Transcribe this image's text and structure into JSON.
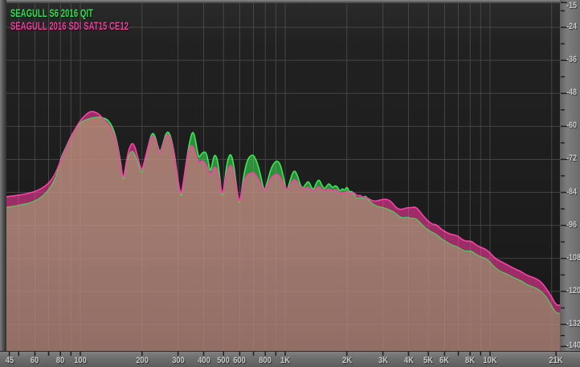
{
  "legend": {
    "items": [
      {
        "label": "SEAGULL S6 2016 QIT",
        "color": "#2ee24e"
      },
      {
        "label": "SEAGULL 2016 SDI SAT15 CE12",
        "color": "#f23d9e"
      }
    ]
  },
  "colors": {
    "plot_bg_top": "#2a2a2a",
    "plot_bg_mid": "#1d1d1d",
    "plot_bg_bottom": "#181818",
    "grid": "#4d4d4d",
    "frame_light": "#8a8a8a",
    "frame_dark": "#3d3d3d",
    "axis_strip_light": "#858585",
    "axis_strip_dark": "#5d5d5d",
    "tick": "#1f1f1f",
    "label_text": "#c9c9c9",
    "series1_line": "#39e353",
    "series1_fill": "#3cd24f",
    "series2_line": "#f441a4",
    "series2_fill": "#d63488",
    "overlap_fill": "#9e7e6e"
  },
  "chart_data": {
    "type": "area",
    "title": "",
    "x_axis": {
      "scale": "log",
      "unit": "Hz",
      "min_hz": 44,
      "max_hz": 21000,
      "labels": [
        {
          "hz": 45,
          "text": "45"
        },
        {
          "hz": 60,
          "text": "60"
        },
        {
          "hz": 80,
          "text": "80"
        },
        {
          "hz": 100,
          "text": "100"
        },
        {
          "hz": 200,
          "text": "200"
        },
        {
          "hz": 300,
          "text": "300"
        },
        {
          "hz": 400,
          "text": "400"
        },
        {
          "hz": 500,
          "text": "500"
        },
        {
          "hz": 600,
          "text": "600"
        },
        {
          "hz": 800,
          "text": "800"
        },
        {
          "hz": 1000,
          "text": "1K"
        },
        {
          "hz": 2000,
          "text": "2K"
        },
        {
          "hz": 3000,
          "text": "3K"
        },
        {
          "hz": 4000,
          "text": "4K"
        },
        {
          "hz": 5000,
          "text": "5K"
        },
        {
          "hz": 6000,
          "text": "6K"
        },
        {
          "hz": 8000,
          "text": "8K"
        },
        {
          "hz": 10000,
          "text": "10K"
        },
        {
          "hz": 21000,
          "text": "21K"
        }
      ],
      "ticks_hz": [
        45,
        50,
        60,
        70,
        80,
        90,
        100,
        200,
        300,
        400,
        500,
        600,
        700,
        800,
        900,
        1000,
        2000,
        3000,
        4000,
        5000,
        6000,
        7000,
        8000,
        9000,
        10000,
        21000
      ],
      "grid_hz": [
        50,
        60,
        70,
        80,
        90,
        100,
        200,
        300,
        400,
        500,
        600,
        700,
        800,
        900,
        1000,
        2000,
        3000,
        4000,
        5000,
        6000,
        7000,
        8000,
        9000,
        10000,
        20000
      ]
    },
    "y_axis": {
      "unit": "dB",
      "max_db": -15,
      "min_db": -141,
      "labels": [
        {
          "db": -15,
          "text": "-15"
        },
        {
          "db": -24,
          "text": "-24"
        },
        {
          "db": -36,
          "text": "-36"
        },
        {
          "db": -48,
          "text": "-48"
        },
        {
          "db": -60,
          "text": "-60"
        },
        {
          "db": -72,
          "text": "-72"
        },
        {
          "db": -84,
          "text": "-84"
        },
        {
          "db": -96,
          "text": "-96"
        },
        {
          "db": -108,
          "text": "-108"
        },
        {
          "db": -120,
          "text": "-120"
        },
        {
          "db": -132,
          "text": "-132"
        },
        {
          "db": -140,
          "text": "-140"
        }
      ],
      "minor_ticks_db": [
        -18,
        -30,
        -42,
        -54,
        -66,
        -78,
        -90,
        -102,
        -114,
        -126,
        -136
      ],
      "grid_db": [
        -24,
        -36,
        -48,
        -60,
        -72,
        -84,
        -96,
        -108,
        -120,
        -132
      ]
    },
    "frequencies_hz": [
      44,
      48,
      52,
      56,
      60,
      64,
      68,
      71,
      74,
      77,
      80,
      84,
      88,
      92,
      96,
      100,
      105,
      110,
      114,
      119,
      124,
      130,
      136,
      142,
      148,
      153,
      158,
      162,
      166,
      171,
      176,
      180,
      185,
      191,
      197,
      201,
      207,
      213,
      219,
      225,
      231,
      238,
      245,
      253,
      261,
      269,
      277,
      287,
      297,
      306,
      311,
      319,
      331,
      343,
      353,
      362,
      371,
      379,
      390,
      400,
      412,
      422,
      430,
      440,
      450,
      462,
      472,
      482,
      492,
      502,
      516,
      530,
      544,
      558,
      572,
      586,
      598,
      612,
      630,
      655,
      680,
      700,
      725,
      755,
      790,
      820,
      855,
      890,
      920,
      950,
      985,
      1015,
      1050,
      1085,
      1115,
      1150,
      1180,
      1215,
      1260,
      1300,
      1340,
      1375,
      1420,
      1465,
      1510,
      1555,
      1600,
      1645,
      1700,
      1750,
      1800,
      1850,
      1900,
      1950,
      2000,
      2060,
      2120,
      2180,
      2250,
      2320,
      2400,
      2460,
      2550,
      2700,
      2850,
      3000,
      3200,
      3350,
      3500,
      3700,
      3900,
      4100,
      4350,
      4600,
      4900,
      5200,
      5500,
      5800,
      6100,
      6500,
      6900,
      7300,
      7700,
      8100,
      8500,
      9000,
      9500,
      10000,
      10600,
      11200,
      11900,
      12600,
      13400,
      14200,
      15000,
      16000,
      17000,
      18000,
      19000,
      20000,
      21000
    ],
    "series": [
      {
        "name": "SEAGULL S6 2016 QIT",
        "db": [
          -89.5,
          -89.0,
          -88.5,
          -88.0,
          -87.2,
          -86.0,
          -84.3,
          -82.5,
          -80.3,
          -77.5,
          -72.0,
          -68.5,
          -65.2,
          -62.3,
          -60.3,
          -58.8,
          -57.8,
          -57.4,
          -57.0,
          -56.8,
          -56.7,
          -57.0,
          -57.6,
          -59.5,
          -63.0,
          -68.0,
          -74.0,
          -80.5,
          -76.0,
          -71.5,
          -69.4,
          -69.0,
          -70.5,
          -73.5,
          -76.5,
          -77.0,
          -72.5,
          -68.3,
          -64.5,
          -62.3,
          -63.3,
          -67.0,
          -69.8,
          -66.5,
          -62.8,
          -61.8,
          -64.0,
          -69.5,
          -77.5,
          -84.0,
          -86.2,
          -80.5,
          -71.5,
          -65.0,
          -61.7,
          -63.5,
          -68.5,
          -71.6,
          -70.0,
          -69.3,
          -69.5,
          -73.0,
          -76.8,
          -74.0,
          -70.4,
          -70.8,
          -74.5,
          -80.0,
          -86.2,
          -83.0,
          -75.0,
          -70.8,
          -70.1,
          -73.0,
          -79.0,
          -85.0,
          -89.1,
          -84.0,
          -77.0,
          -72.0,
          -70.6,
          -70.4,
          -72.5,
          -77.0,
          -84.2,
          -80.0,
          -75.0,
          -73.0,
          -72.5,
          -74.0,
          -79.0,
          -84.0,
          -80.5,
          -77.0,
          -76.0,
          -78.0,
          -81.0,
          -82.7,
          -81.0,
          -79.8,
          -82.0,
          -83.3,
          -80.5,
          -79.2,
          -81.5,
          -82.9,
          -81.5,
          -80.7,
          -82.5,
          -81.5,
          -82.0,
          -83.8,
          -82.5,
          -83.5,
          -81.8,
          -84.0,
          -83.5,
          -85.4,
          -86.3,
          -85.8,
          -86.5,
          -85.0,
          -87.0,
          -88.5,
          -89.3,
          -89.5,
          -90.3,
          -91.0,
          -92.0,
          -93.5,
          -93.0,
          -93.5,
          -93.5,
          -95.5,
          -97.5,
          -98.5,
          -99.5,
          -101.0,
          -102.0,
          -103.3,
          -103.7,
          -105.0,
          -105.5,
          -105.3,
          -106.5,
          -107.5,
          -108.0,
          -109.5,
          -111.5,
          -112.8,
          -113.5,
          -114.5,
          -115.5,
          -116.2,
          -117.5,
          -118.3,
          -119.0,
          -120.5,
          -122.5,
          -125.5,
          -128.0
        ]
      },
      {
        "name": "SEAGULL 2016 SDI SAT15 CE12",
        "db": [
          -85.6,
          -85.2,
          -84.8,
          -84.3,
          -83.7,
          -82.8,
          -81.5,
          -80.2,
          -78.3,
          -75.8,
          -72.5,
          -69.0,
          -65.5,
          -62.5,
          -60.0,
          -58.0,
          -56.1,
          -54.9,
          -54.5,
          -54.9,
          -55.7,
          -57.5,
          -59.0,
          -60.8,
          -64.0,
          -69.0,
          -75.0,
          -79.5,
          -74.8,
          -69.5,
          -66.8,
          -66.0,
          -67.5,
          -71.5,
          -75.3,
          -75.8,
          -71.8,
          -68.0,
          -65.0,
          -63.2,
          -64.2,
          -67.8,
          -70.2,
          -67.2,
          -63.8,
          -62.8,
          -64.8,
          -70.2,
          -78.0,
          -83.5,
          -84.8,
          -79.8,
          -71.8,
          -67.0,
          -67.0,
          -69.0,
          -71.5,
          -73.3,
          -72.6,
          -72.8,
          -74.0,
          -76.0,
          -77.7,
          -76.5,
          -74.7,
          -75.2,
          -77.5,
          -81.0,
          -85.0,
          -82.5,
          -77.5,
          -74.8,
          -74.0,
          -76.0,
          -80.5,
          -84.5,
          -88.0,
          -84.5,
          -79.5,
          -77.5,
          -77.0,
          -76.8,
          -78.0,
          -80.5,
          -83.8,
          -81.5,
          -78.5,
          -77.6,
          -77.4,
          -78.5,
          -81.0,
          -83.2,
          -82.0,
          -79.8,
          -79.2,
          -80.5,
          -82.0,
          -82.5,
          -82.3,
          -82.1,
          -83.0,
          -83.6,
          -82.5,
          -81.8,
          -83.0,
          -83.4,
          -83.0,
          -82.7,
          -83.5,
          -83.0,
          -83.3,
          -84.5,
          -84.0,
          -84.5,
          -83.3,
          -84.6,
          -84.0,
          -84.3,
          -85.3,
          -85.0,
          -85.8,
          -85.6,
          -86.3,
          -87.3,
          -87.0,
          -86.5,
          -86.6,
          -88.0,
          -89.8,
          -90.3,
          -89.6,
          -89.6,
          -89.2,
          -91.5,
          -94.0,
          -95.5,
          -95.8,
          -97.5,
          -98.5,
          -99.4,
          -99.6,
          -101.2,
          -101.8,
          -101.7,
          -103.0,
          -104.0,
          -104.6,
          -106.0,
          -108.0,
          -109.0,
          -110.0,
          -111.0,
          -112.0,
          -112.8,
          -114.0,
          -114.8,
          -115.5,
          -117.0,
          -119.5,
          -122.0,
          -125.0
        ]
      }
    ]
  }
}
